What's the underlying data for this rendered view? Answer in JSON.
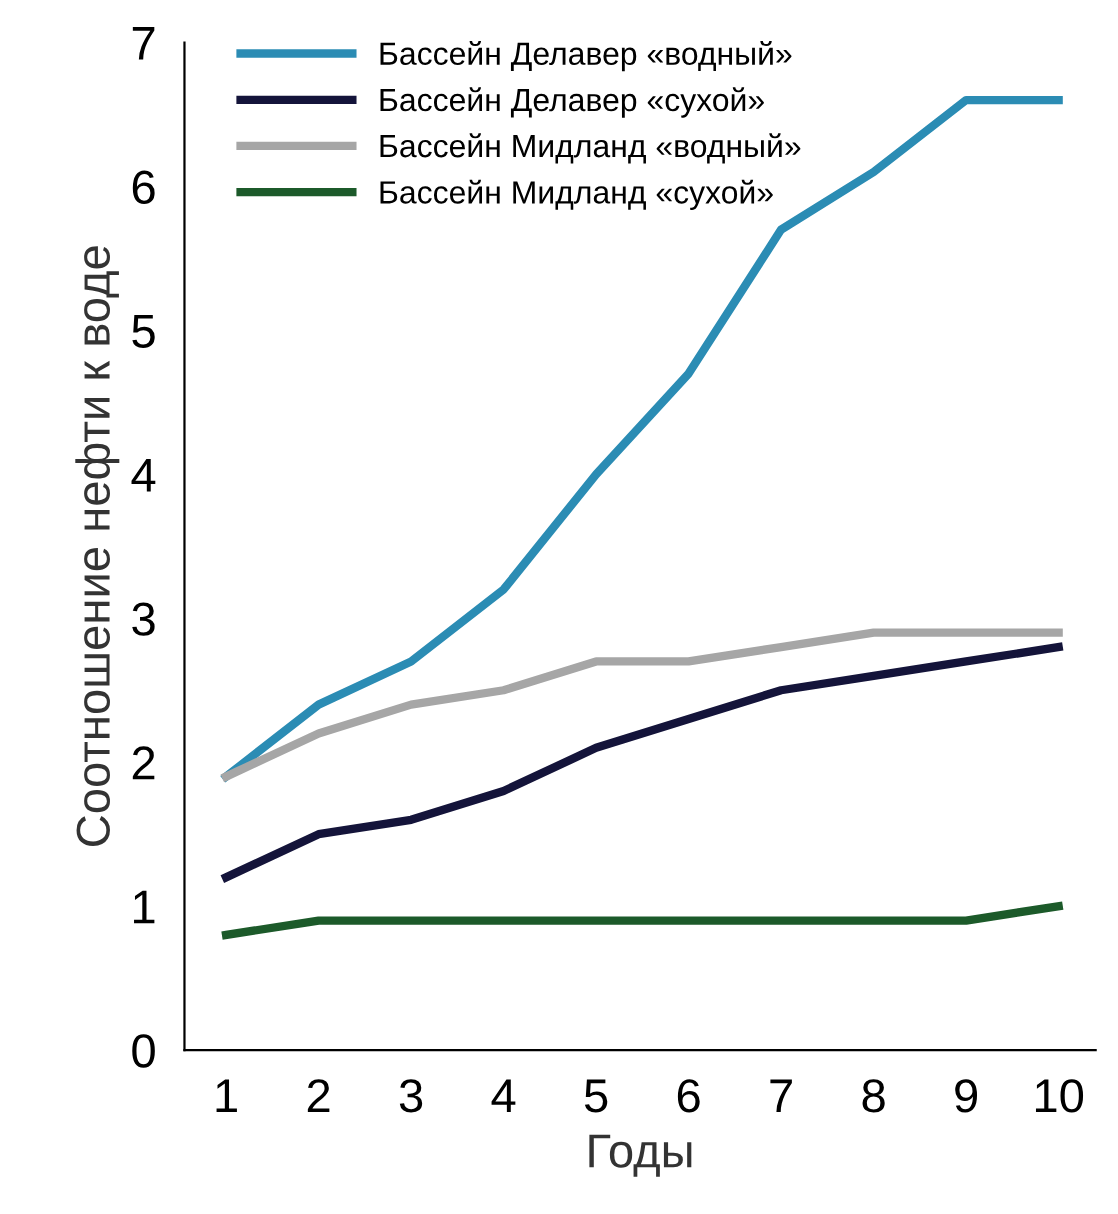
{
  "chart_data": {
    "type": "line",
    "xlabel": "Годы",
    "ylabel": "Соотношение нефти к воде",
    "x": [
      1,
      2,
      3,
      4,
      5,
      6,
      7,
      8,
      9,
      10
    ],
    "series": [
      {
        "name": "Бассейн Делавер «водный»",
        "color": "#2b8cb4",
        "values": [
          1.9,
          2.4,
          2.7,
          3.2,
          4.0,
          4.7,
          5.7,
          6.1,
          6.6,
          6.6
        ]
      },
      {
        "name": "Бассейн Делавер «сухой»",
        "color": "#14143a",
        "values": [
          1.2,
          1.5,
          1.6,
          1.8,
          2.1,
          2.3,
          2.5,
          2.6,
          2.7,
          2.8
        ]
      },
      {
        "name": "Бассейн Мидланд «водный»",
        "color": "#a6a6a6",
        "values": [
          1.9,
          2.2,
          2.4,
          2.5,
          2.7,
          2.7,
          2.8,
          2.9,
          2.9,
          2.9
        ]
      },
      {
        "name": "Бассейн Мидланд «сухой»",
        "color": "#1c5a2a",
        "values": [
          0.8,
          0.9,
          0.9,
          0.9,
          0.9,
          0.9,
          0.9,
          0.9,
          0.9,
          1.0
        ]
      }
    ],
    "xlim": [
      0.55,
      10.4
    ],
    "ylim": [
      0,
      7
    ],
    "xticks": [
      1,
      2,
      3,
      4,
      5,
      6,
      7,
      8,
      9,
      10
    ],
    "yticks": [
      0,
      1,
      2,
      3,
      4,
      5,
      6,
      7
    ],
    "grid": false,
    "legend": "top left",
    "marker": "none",
    "line_style": "solid"
  }
}
